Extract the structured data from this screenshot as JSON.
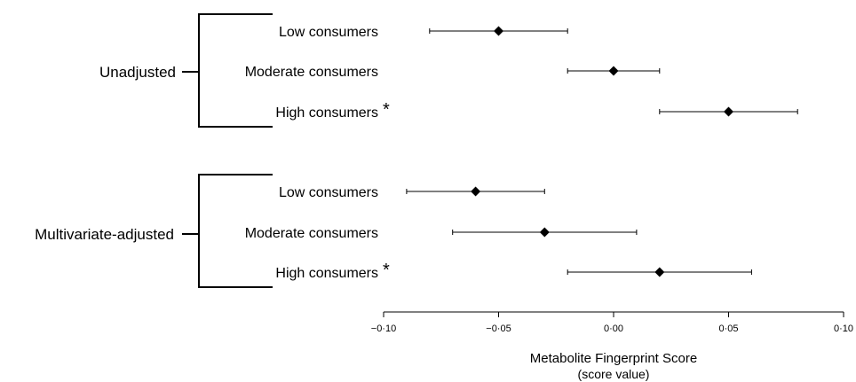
{
  "chart_data": {
    "type": "forest",
    "xlabel": "Metabolite Fingerprint Score",
    "xlabel_sub": "(score value)",
    "xlim": [
      -0.1,
      0.1
    ],
    "xticks": [
      -0.1,
      -0.05,
      0.0,
      0.05,
      0.1
    ],
    "xtick_labels": [
      "−0·10",
      "−0·05",
      "0·00",
      "0·05",
      "0·10"
    ],
    "grid": false,
    "legend": "none",
    "marker": "diamond",
    "groups": [
      {
        "label": "Unadjusted",
        "rows": [
          {
            "label": "Low consumers",
            "significant": false,
            "estimate": -0.05,
            "lower": -0.08,
            "upper": -0.02
          },
          {
            "label": "Moderate consumers",
            "significant": false,
            "estimate": 0.0,
            "lower": -0.02,
            "upper": 0.02
          },
          {
            "label": "High consumers",
            "significant": true,
            "estimate": 0.05,
            "lower": 0.02,
            "upper": 0.08
          }
        ]
      },
      {
        "label": "Multivariate-adjusted",
        "rows": [
          {
            "label": "Low consumers",
            "significant": false,
            "estimate": -0.06,
            "lower": -0.09,
            "upper": -0.03
          },
          {
            "label": "Moderate consumers",
            "significant": false,
            "estimate": -0.03,
            "lower": -0.07,
            "upper": 0.01
          },
          {
            "label": "High consumers",
            "significant": true,
            "estimate": 0.02,
            "lower": -0.02,
            "upper": 0.06
          }
        ]
      }
    ],
    "significance_marker": "*"
  }
}
